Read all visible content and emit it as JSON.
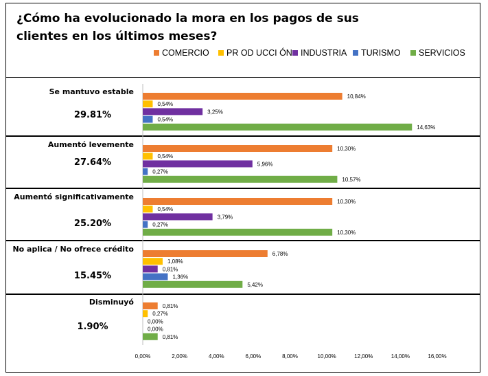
{
  "title": "¿Cómo ha evolucionado la mora en los pagos de sus clientes en los últimos meses?",
  "legend": [
    {
      "name": "COMERCIO",
      "color": "#ED7D31"
    },
    {
      "name": "PR OD UCCI ÓN",
      "color": "#FFC000"
    },
    {
      "name": "INDUSTRIA",
      "color": "#7030A0"
    },
    {
      "name": "TURISMO",
      "color": "#4472C4"
    },
    {
      "name": "SERVICIOS",
      "color": "#70AD47"
    }
  ],
  "chart_data": {
    "type": "bar",
    "orientation": "horizontal",
    "title": "¿Cómo ha evolucionado la mora en los pagos de sus clientes en los últimos meses?",
    "xlim": [
      0,
      16
    ],
    "x_ticks": [
      "0,00%",
      "2,00%",
      "4,00%",
      "6,00%",
      "8,00%",
      "10,00%",
      "12,00%",
      "14,00%",
      "16,00%"
    ],
    "grid": false,
    "legend_position": "top",
    "categories": [
      {
        "label": "Se mantuvo estable",
        "total": "29.81%"
      },
      {
        "label": "Aumentó levemente",
        "total": "27.64%"
      },
      {
        "label": "Aumentó significativamente",
        "total": "25.20%"
      },
      {
        "label": "No aplica / No ofrece crédito",
        "total": "15.45%"
      },
      {
        "label": "Disminuyó",
        "total": "1.90%"
      }
    ],
    "series": [
      {
        "name": "COMERCIO",
        "color": "#ED7D31",
        "values": [
          10.84,
          10.3,
          10.3,
          6.78,
          0.81
        ],
        "labels": [
          "10,84%",
          "10,30%",
          "10,30%",
          "6,78%",
          "0,81%"
        ]
      },
      {
        "name": "PR OD UCCI ÓN",
        "color": "#FFC000",
        "values": [
          0.54,
          0.54,
          0.54,
          1.08,
          0.27
        ],
        "labels": [
          "0,54%",
          "0,54%",
          "0,54%",
          "1,08%",
          "0,27%"
        ]
      },
      {
        "name": "INDUSTRIA",
        "color": "#7030A0",
        "values": [
          3.25,
          5.96,
          3.79,
          0.81,
          0.0
        ],
        "labels": [
          "3,25%",
          "5,96%",
          "3,79%",
          "0,81%",
          "0,00%"
        ]
      },
      {
        "name": "TURISMO",
        "color": "#4472C4",
        "values": [
          0.54,
          0.27,
          0.27,
          1.36,
          0.0
        ],
        "labels": [
          "0,54%",
          "0,27%",
          "0,27%",
          "1,36%",
          "0,00%"
        ]
      },
      {
        "name": "SERVICIOS",
        "color": "#70AD47",
        "values": [
          14.63,
          10.57,
          10.3,
          5.42,
          0.81
        ],
        "labels": [
          "14,63%",
          "10,57%",
          "10,30%",
          "5,42%",
          "0,81%"
        ]
      }
    ]
  }
}
